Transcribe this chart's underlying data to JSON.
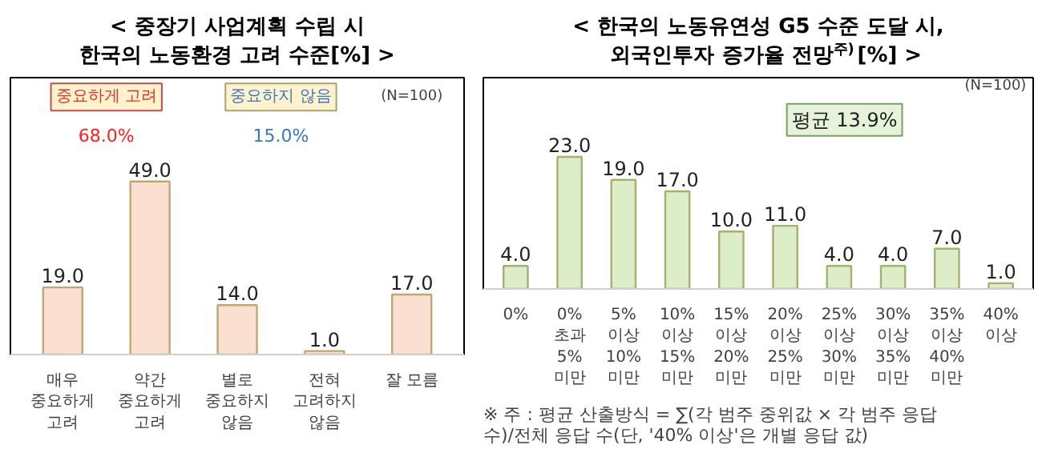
{
  "chart_data": [
    {
      "type": "bar",
      "title": "< 중장기 사업계획 수립 시\n한국의 노동환경 고려 수준[%] >",
      "categories": [
        "매우\n중요하게\n고려",
        "약간\n중요하게\n고려",
        "별로\n중요하지\n않음",
        "전혀\n고려하지\n않음",
        "잘 모름"
      ],
      "values": [
        19.0,
        49.0,
        14.0,
        1.0,
        17.0
      ],
      "color": "#fbe0d2",
      "value_labels": [
        "19.0",
        "49.0",
        "14.0",
        "1.0",
        "17.0"
      ],
      "annotations": [
        "중요하게 고려",
        "중요하지 않음",
        "(N=100)",
        "68.0%",
        "15.0%"
      ]
    },
    {
      "type": "bar",
      "title": "< 한국의 노동유연성 G5 수준 도달 시,\n외국인투자 증가율 전망$^{주)}$[%] >",
      "categories": [
        "0%",
        "0% 초과 5% 미만",
        "5% 이상 10% 미만",
        "10% 이상 15% 미만",
        "15% 이상 20% 미만",
        "20% 이상 25% 미만",
        "25% 이상 30% 미만",
        "30% 이상 35% 미만",
        "35% 이상 40% 미만",
        "40% 이상"
      ],
      "values": [
        4.0,
        23.0,
        19.0,
        17.0,
        10.0,
        11.0,
        4.0,
        4.0,
        7.0,
        1.0
      ],
      "color": "#dcedc8",
      "value_labels": [
        "4.0",
        "23.0",
        "19.0",
        "17.0",
        "10.0",
        "11.0",
        "4.0",
        "4.0",
        "7.0",
        "1.0"
      ],
      "annotations": [
        "(N=100)",
        "평균 13.9%",
        "※ 주 : 평균 산출방식 = ∑(각 범주 중위값 × 각 범주 응답 수)/전체 응답 수(단, '40% 이상'은 개별 응답 값)"
      ]
    }
  ]
}
